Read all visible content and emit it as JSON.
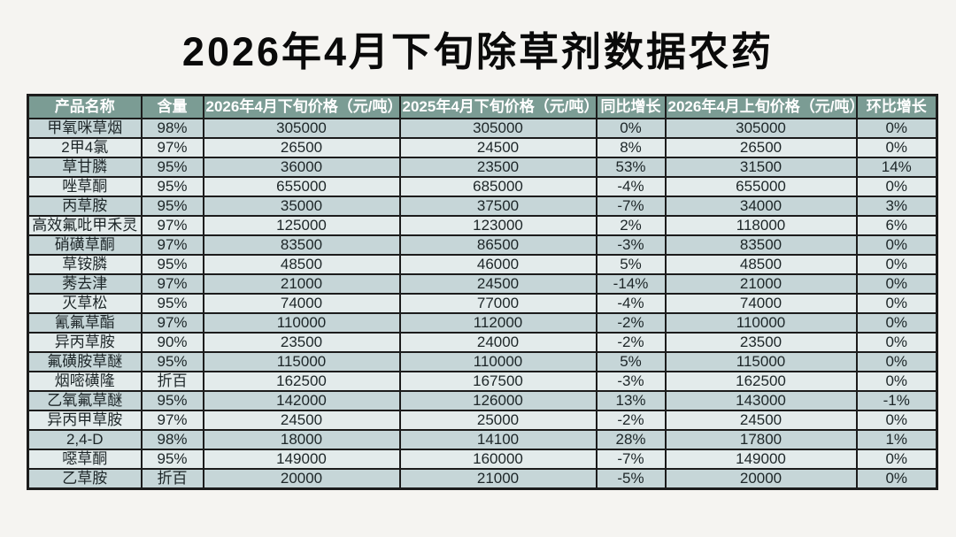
{
  "title": "2026年4月下旬除草剂数据农药",
  "colors": {
    "page_background": "#f5f4f1",
    "header_background": "#7b9c94",
    "header_text": "#ffffff",
    "row_odd_background": "#c6d6d8",
    "row_even_background": "#e3ebeb",
    "border": "#1c1c1c",
    "cell_text": "#1d2628",
    "title_text": "#0a0a0a"
  },
  "chart_data": {
    "type": "table",
    "title": "2026年4月下旬除草剂数据农药",
    "columns": [
      "产品名称",
      "含量",
      "2026年4月下旬价格（元/吨）",
      "2025年4月下旬价格（元/吨）",
      "同比增长",
      "2026年4月上旬价格（元/吨）",
      "环比增长"
    ],
    "rows": [
      [
        "甲氧咪草烟",
        "98%",
        "305000",
        "305000",
        "0%",
        "305000",
        "0%"
      ],
      [
        "2甲4氯",
        "97%",
        "26500",
        "24500",
        "8%",
        "26500",
        "0%"
      ],
      [
        "草甘膦",
        "95%",
        "36000",
        "23500",
        "53%",
        "31500",
        "14%"
      ],
      [
        "唑草酮",
        "95%",
        "655000",
        "685000",
        "-4%",
        "655000",
        "0%"
      ],
      [
        "丙草胺",
        "95%",
        "35000",
        "37500",
        "-7%",
        "34000",
        "3%"
      ],
      [
        "高效氟吡甲禾灵",
        "97%",
        "125000",
        "123000",
        "2%",
        "118000",
        "6%"
      ],
      [
        "硝磺草酮",
        "97%",
        "83500",
        "86500",
        "-3%",
        "83500",
        "0%"
      ],
      [
        "草铵膦",
        "95%",
        "48500",
        "46000",
        "5%",
        "48500",
        "0%"
      ],
      [
        "莠去津",
        "97%",
        "21000",
        "24500",
        "-14%",
        "21000",
        "0%"
      ],
      [
        "灭草松",
        "95%",
        "74000",
        "77000",
        "-4%",
        "74000",
        "0%"
      ],
      [
        "氰氟草酯",
        "97%",
        "110000",
        "112000",
        "-2%",
        "110000",
        "0%"
      ],
      [
        "异丙草胺",
        "90%",
        "23500",
        "24000",
        "-2%",
        "23500",
        "0%"
      ],
      [
        "氟磺胺草醚",
        "95%",
        "115000",
        "110000",
        "5%",
        "115000",
        "0%"
      ],
      [
        "烟嘧磺隆",
        "折百",
        "162500",
        "167500",
        "-3%",
        "162500",
        "0%"
      ],
      [
        "乙氧氟草醚",
        "95%",
        "142000",
        "126000",
        "13%",
        "143000",
        "-1%"
      ],
      [
        "异丙甲草胺",
        "97%",
        "24500",
        "25000",
        "-2%",
        "24500",
        "0%"
      ],
      [
        "2,4-D",
        "98%",
        "18000",
        "14100",
        "28%",
        "17800",
        "1%"
      ],
      [
        "噁草酮",
        "95%",
        "149000",
        "160000",
        "-7%",
        "149000",
        "0%"
      ],
      [
        "乙草胺",
        "折百",
        "20000",
        "21000",
        "-5%",
        "20000",
        "0%"
      ]
    ]
  }
}
